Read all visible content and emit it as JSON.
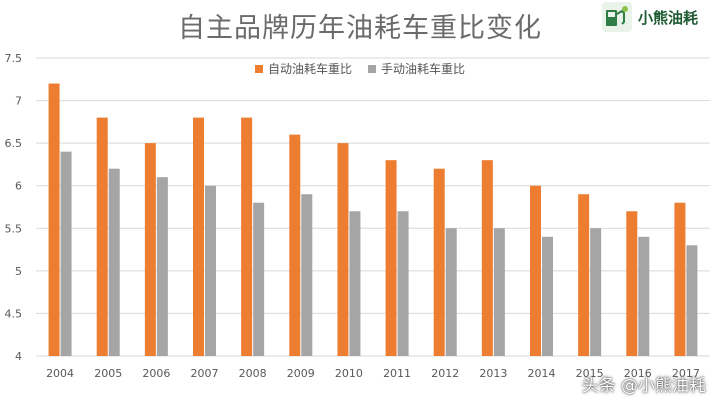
{
  "chart_data": {
    "type": "bar",
    "title": "自主品牌历年油耗车重比变化",
    "categories": [
      "2004",
      "2005",
      "2006",
      "2007",
      "2008",
      "2009",
      "2010",
      "2011",
      "2012",
      "2013",
      "2014",
      "2015",
      "2016",
      "2017"
    ],
    "series": [
      {
        "name": "自动油耗车重比",
        "color": "#ed7d31",
        "values": [
          7.2,
          6.8,
          6.5,
          6.8,
          6.8,
          6.6,
          6.5,
          6.3,
          6.2,
          6.3,
          6.0,
          5.9,
          5.7,
          5.8
        ]
      },
      {
        "name": "手动油耗车重比",
        "color": "#a5a5a5",
        "values": [
          6.4,
          6.2,
          6.1,
          6.0,
          5.8,
          5.9,
          5.7,
          5.7,
          5.5,
          5.5,
          5.4,
          5.5,
          5.4,
          5.3
        ]
      }
    ],
    "yticks": [
      "4",
      "4.5",
      "5",
      "5.5",
      "6",
      "6.5",
      "7",
      "7.5"
    ],
    "ylim": [
      4,
      7.5
    ],
    "grid": true,
    "legend_position": "top"
  },
  "logo": {
    "text": "小熊油耗"
  },
  "watermark": {
    "text": "头条 @小熊油耗"
  }
}
